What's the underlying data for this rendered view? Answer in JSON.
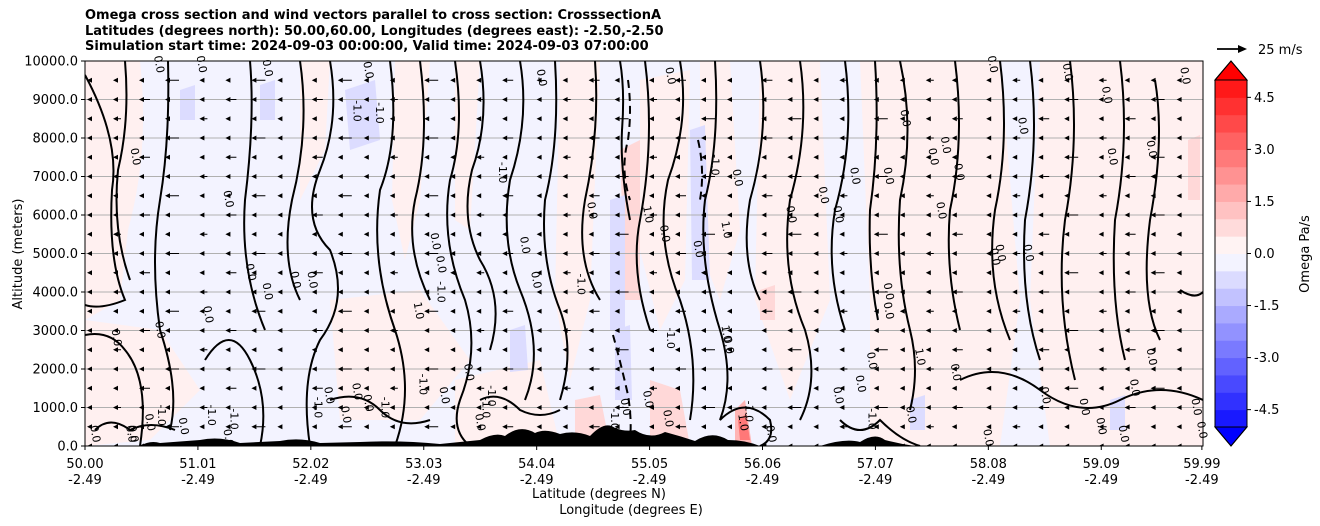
{
  "title_lines": [
    "Omega cross section and wind vectors parallel to cross section: CrosssectionA",
    "Latitudes (degrees north): 50.00,60.00, Longitudes (degrees east): -2.50,-2.50",
    "Simulation start time: 2024-09-03 00:00:00, Valid time: 2024-09-03 07:00:00"
  ],
  "chart_data": {
    "type": "heatmap",
    "ylabel": "Altitude (meters)",
    "xlabel": "Latitude (degrees N)",
    "xlabel2": "Longitude (degrees E)",
    "ylim": [
      0,
      10000
    ],
    "yticks": [
      "0.0",
      "1000.0",
      "2000.0",
      "3000.0",
      "4000.0",
      "5000.0",
      "6000.0",
      "7000.0",
      "8000.0",
      "9000.0",
      "10000.0"
    ],
    "xticks": [
      {
        "lat": "50.00",
        "lon": "-2.49",
        "pos": 0.0
      },
      {
        "lat": "51.01",
        "lon": "-2.49",
        "pos": 0.101
      },
      {
        "lat": "52.02",
        "lon": "-2.49",
        "pos": 0.202
      },
      {
        "lat": "53.03",
        "lon": "-2.49",
        "pos": 0.303
      },
      {
        "lat": "54.04",
        "lon": "-2.49",
        "pos": 0.404
      },
      {
        "lat": "55.05",
        "lon": "-2.49",
        "pos": 0.505
      },
      {
        "lat": "56.06",
        "lon": "-2.49",
        "pos": 0.606
      },
      {
        "lat": "57.07",
        "lon": "-2.49",
        "pos": 0.707
      },
      {
        "lat": "58.08",
        "lon": "-2.49",
        "pos": 0.808
      },
      {
        "lat": "59.09",
        "lon": "-2.49",
        "pos": 0.909
      },
      {
        "lat": "59.99",
        "lon": "-2.49",
        "pos": 0.999
      }
    ],
    "grid": true,
    "colorbar": {
      "label": "Omega Pa/s",
      "vmin": -5.0,
      "vmax": 5.0,
      "step": 0.5,
      "ticks": [
        "-4.5",
        "-3.0",
        "-1.5",
        "0.0",
        "1.5",
        "3.0",
        "4.5"
      ],
      "tick_values": [
        -4.5,
        -3.0,
        -1.5,
        0.0,
        1.5,
        3.0,
        4.5
      ],
      "neg_color": "#0000ff",
      "pos_color": "#ff0000"
    },
    "quiver_key": "25 m/s",
    "contour_labels": [
      {
        "text": "0.0",
        "lat": 50.63,
        "alt": 9900
      },
      {
        "text": "0.0",
        "lat": 51.01,
        "alt": 9900
      },
      {
        "text": "0.0",
        "lat": 51.6,
        "alt": 9800
      },
      {
        "text": "0.0",
        "lat": 52.5,
        "alt": 9750
      },
      {
        "text": "-1.0",
        "lat": 52.4,
        "alt": 8700
      },
      {
        "text": "-1.0",
        "lat": 52.6,
        "alt": 8650
      },
      {
        "text": "0.0",
        "lat": 54.05,
        "alt": 9550
      },
      {
        "text": "0.0",
        "lat": 55.2,
        "alt": 9600
      },
      {
        "text": "0.0",
        "lat": 50.42,
        "alt": 7500
      },
      {
        "text": "0.0",
        "lat": 51.25,
        "alt": 6400
      },
      {
        "text": "0.0",
        "lat": 51.45,
        "alt": 4500
      },
      {
        "text": "0.0",
        "lat": 51.6,
        "alt": 4000
      },
      {
        "text": "0.0",
        "lat": 52.0,
        "alt": 4300
      },
      {
        "text": "0.0",
        "lat": 51.07,
        "alt": 3400
      },
      {
        "text": "0.0",
        "lat": 50.64,
        "alt": 3000
      },
      {
        "text": "0.0",
        "lat": 50.25,
        "alt": 2800
      },
      {
        "text": "1.0",
        "lat": 52.95,
        "alt": 3500
      },
      {
        "text": "0.0",
        "lat": 53.1,
        "alt": 5300
      },
      {
        "text": "0.0",
        "lat": 53.15,
        "alt": 4700
      },
      {
        "text": "-1.0",
        "lat": 53.15,
        "alt": 4000
      },
      {
        "text": "-1.0",
        "lat": 53.7,
        "alt": 7100
      },
      {
        "text": "0.0",
        "lat": 54.0,
        "alt": 4300
      },
      {
        "text": "0.0",
        "lat": 53.9,
        "alt": 5200
      },
      {
        "text": "-1.0",
        "lat": 54.4,
        "alt": 4200
      },
      {
        "text": "0.0",
        "lat": 54.5,
        "alt": 6100
      },
      {
        "text": "1.0",
        "lat": 55.0,
        "alt": 6000
      },
      {
        "text": "0.0",
        "lat": 55.15,
        "alt": 5500
      },
      {
        "text": "-1.0",
        "lat": 55.6,
        "alt": 7300
      },
      {
        "text": "0.0",
        "lat": 55.8,
        "alt": 6950
      },
      {
        "text": "1.0",
        "lat": 55.7,
        "alt": 5600
      },
      {
        "text": "0.0",
        "lat": 55.45,
        "alt": 5100
      },
      {
        "text": "1.0",
        "lat": 55.7,
        "alt": 2900
      },
      {
        "text": "0.0",
        "lat": 55.72,
        "alt": 2600
      },
      {
        "text": "-1.0",
        "lat": 55.2,
        "alt": 2800
      },
      {
        "text": "0.0",
        "lat": 56.28,
        "alt": 6000
      },
      {
        "text": "0.0",
        "lat": 56.57,
        "alt": 6500
      },
      {
        "text": "0.0",
        "lat": 56.7,
        "alt": 6000
      },
      {
        "text": "0.0",
        "lat": 56.85,
        "alt": 7000
      },
      {
        "text": "0.0",
        "lat": 57.15,
        "alt": 7000
      },
      {
        "text": "0.0",
        "lat": 57.3,
        "alt": 8500
      },
      {
        "text": "0.0",
        "lat": 57.55,
        "alt": 7500
      },
      {
        "text": "0.0",
        "lat": 57.62,
        "alt": 6100
      },
      {
        "text": "0.0",
        "lat": 57.66,
        "alt": 7800
      },
      {
        "text": "0.0",
        "lat": 57.78,
        "alt": 7100
      },
      {
        "text": "0.0",
        "lat": 57.15,
        "alt": 4000
      },
      {
        "text": "0.0",
        "lat": 57.15,
        "alt": 3500
      },
      {
        "text": "0.0",
        "lat": 58.1,
        "alt": 4900
      },
      {
        "text": "0.0",
        "lat": 58.15,
        "alt": 5000
      },
      {
        "text": "0.0",
        "lat": 58.35,
        "alt": 8300
      },
      {
        "text": "0.0",
        "lat": 58.4,
        "alt": 5000
      },
      {
        "text": "0.0",
        "lat": 58.08,
        "alt": 9900
      },
      {
        "text": "0.0",
        "lat": 58.75,
        "alt": 9700
      },
      {
        "text": "0.0",
        "lat": 59.1,
        "alt": 9100
      },
      {
        "text": "0.0",
        "lat": 59.15,
        "alt": 7500
      },
      {
        "text": "0.0",
        "lat": 59.8,
        "alt": 9600
      },
      {
        "text": "0.0",
        "lat": 59.5,
        "alt": 7700
      },
      {
        "text": "0.0",
        "lat": 59.5,
        "alt": 2300
      },
      {
        "text": "0.0",
        "lat": 59.35,
        "alt": 1500
      },
      {
        "text": "1.0",
        "lat": 57.43,
        "alt": 2300
      },
      {
        "text": "0.0",
        "lat": 57.0,
        "alt": 2200
      },
      {
        "text": "0.0",
        "lat": 56.9,
        "alt": 1600
      },
      {
        "text": "0.0",
        "lat": 56.7,
        "alt": 1300
      },
      {
        "text": "0.0",
        "lat": 57.75,
        "alt": 1900
      },
      {
        "text": "-1.0",
        "lat": 57.0,
        "alt": 700
      },
      {
        "text": "0.0",
        "lat": 57.35,
        "alt": 800
      },
      {
        "text": "0.0",
        "lat": 58.04,
        "alt": 200
      },
      {
        "text": "0.0",
        "lat": 58.55,
        "alt": 1300
      },
      {
        "text": "0.0",
        "lat": 58.9,
        "alt": 1000
      },
      {
        "text": "0.0",
        "lat": 59.05,
        "alt": 500
      },
      {
        "text": "0.0",
        "lat": 59.25,
        "alt": 300
      },
      {
        "text": "0.0",
        "lat": 59.95,
        "alt": 400
      },
      {
        "text": "0.0",
        "lat": 59.9,
        "alt": 1000
      },
      {
        "text": "-1.0",
        "lat": 52.99,
        "alt": 1600
      },
      {
        "text": "-1.0",
        "lat": 53.6,
        "alt": 1300
      },
      {
        "text": "0.0",
        "lat": 53.18,
        "alt": 1300
      },
      {
        "text": "0.0",
        "lat": 52.4,
        "alt": 1400
      },
      {
        "text": "0.0",
        "lat": 53.4,
        "alt": 1900
      },
      {
        "text": "-1.0",
        "lat": 53.55,
        "alt": 1000
      },
      {
        "text": "0.0",
        "lat": 54.8,
        "alt": 1000
      },
      {
        "text": "-1.0",
        "lat": 55.9,
        "alt": 900
      },
      {
        "text": "0.0",
        "lat": 55.0,
        "alt": 1200
      },
      {
        "text": "1.0",
        "lat": 55.85,
        "alt": 600
      },
      {
        "text": "0.0",
        "lat": 56.1,
        "alt": 300
      },
      {
        "text": "0.0",
        "lat": 50.4,
        "alt": 300
      },
      {
        "text": "0.0",
        "lat": 50.06,
        "alt": 300
      },
      {
        "text": "0.0",
        "lat": 50.55,
        "alt": 600
      },
      {
        "text": "-1.0",
        "lat": 50.65,
        "alt": 800
      },
      {
        "text": "0.0",
        "lat": 50.85,
        "alt": 500
      },
      {
        "text": "-1.0",
        "lat": 51.1,
        "alt": 800
      },
      {
        "text": "-1.0",
        "lat": 51.3,
        "alt": 700
      },
      {
        "text": "0.0",
        "lat": 51.25,
        "alt": 200
      },
      {
        "text": "-1.0",
        "lat": 52.05,
        "alt": 1000
      },
      {
        "text": "0.0",
        "lat": 52.15,
        "alt": 1300
      },
      {
        "text": "0.0",
        "lat": 52.3,
        "alt": 800
      },
      {
        "text": "0.0",
        "lat": 52.5,
        "alt": 1100
      },
      {
        "text": "-1.0",
        "lat": 52.65,
        "alt": 1000
      },
      {
        "text": "0.0",
        "lat": 53.5,
        "alt": 600
      },
      {
        "text": "-1.0",
        "lat": 54.7,
        "alt": 700
      },
      {
        "text": "0.0",
        "lat": 55.18,
        "alt": 700
      },
      {
        "text": "0.0",
        "lat": 50.38,
        "alt": 300
      },
      {
        "text": "0.0",
        "lat": 51.85,
        "alt": 4300
      }
    ]
  }
}
